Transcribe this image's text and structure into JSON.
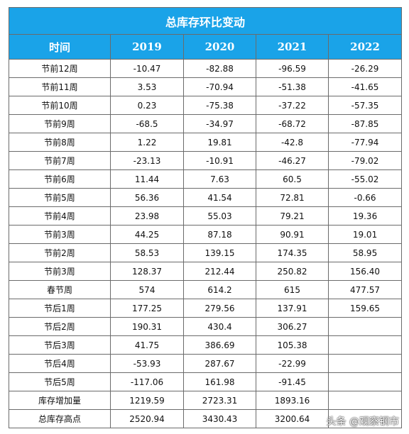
{
  "table": {
    "title": "总库存环比变动",
    "header": [
      "时间",
      "2019",
      "2020",
      "2021",
      "2022"
    ],
    "rows": [
      [
        "节前12周",
        "-10.47",
        "-82.88",
        "-96.59",
        "-26.29"
      ],
      [
        "节前11周",
        "3.53",
        "-70.94",
        "-51.38",
        "-41.65"
      ],
      [
        "节前10周",
        "0.23",
        "-75.38",
        "-37.22",
        "-57.35"
      ],
      [
        "节前9周",
        "-68.5",
        "-34.97",
        "-68.72",
        "-87.85"
      ],
      [
        "节前8周",
        "1.22",
        "19.81",
        "-42.8",
        "-77.94"
      ],
      [
        "节前7周",
        "-23.13",
        "-10.91",
        "-46.27",
        "-79.02"
      ],
      [
        "节前6周",
        "11.44",
        "7.63",
        "60.5",
        "-55.02"
      ],
      [
        "节前5周",
        "56.36",
        "41.54",
        "72.81",
        "-0.66"
      ],
      [
        "节前4周",
        "23.98",
        "55.03",
        "79.21",
        "19.36"
      ],
      [
        "节前3周",
        "44.25",
        "87.18",
        "90.91",
        "19.01"
      ],
      [
        "节前2周",
        "58.53",
        "139.15",
        "174.35",
        "58.95"
      ],
      [
        "节前3周",
        "128.37",
        "212.44",
        "250.82",
        "156.40"
      ],
      [
        "春节周",
        "574",
        "614.2",
        "615",
        "477.57"
      ],
      [
        "节后1周",
        "177.25",
        "279.56",
        "137.91",
        "159.65"
      ],
      [
        "节后2周",
        "190.31",
        "430.4",
        "306.27",
        null
      ],
      [
        "节后3周",
        "41.75",
        "386.69",
        "105.38",
        null
      ],
      [
        "节后4周",
        "-53.93",
        "287.67",
        "-22.99",
        null
      ],
      [
        "节后5周",
        "-117.06",
        "161.98",
        "-91.45",
        null
      ],
      [
        "库存增加量",
        "1219.59",
        "2723.31",
        "1893.16",
        null
      ],
      [
        "总库存高点",
        "2520.94",
        "3430.43",
        "3200.64",
        null
      ]
    ]
  },
  "watermark": "头条 @观察钢市"
}
